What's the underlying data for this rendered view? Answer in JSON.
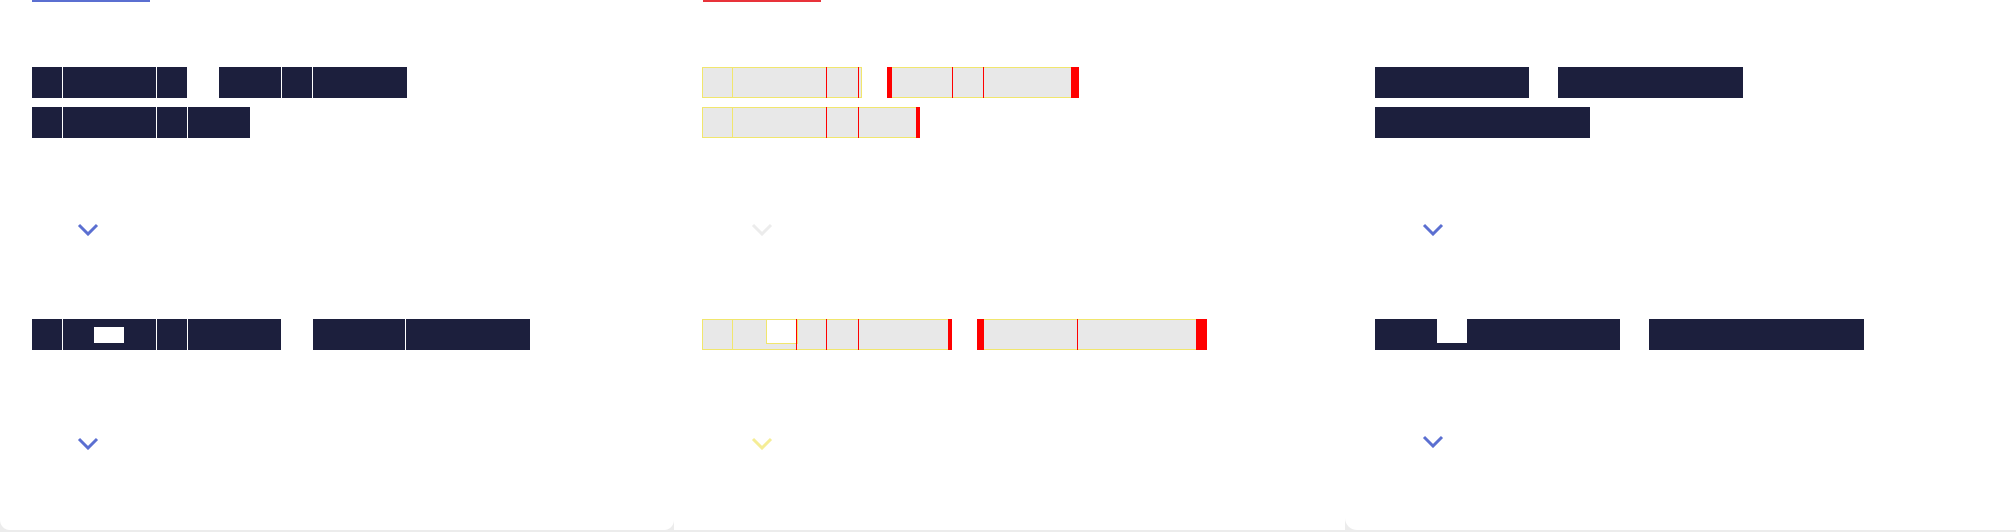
{
  "panels": [
    {
      "id": "original",
      "tab_color": "#5b6fd1",
      "chevron_color": "#5b6fd1"
    },
    {
      "id": "diff",
      "tab_color": "#e8333a",
      "chevron_top_color": "#ececec",
      "chevron_bottom_color": "#f5ed96"
    },
    {
      "id": "rendered",
      "chevron_color": "#5b6fd1"
    }
  ],
  "colors": {
    "redacted_text": "#1c1f3d",
    "diff_fill": "#e8e8e8",
    "diff_outline": "#f1e66d",
    "diff_mismatch": "#ff0000"
  },
  "icons": [
    "chevron-down-icon"
  ]
}
